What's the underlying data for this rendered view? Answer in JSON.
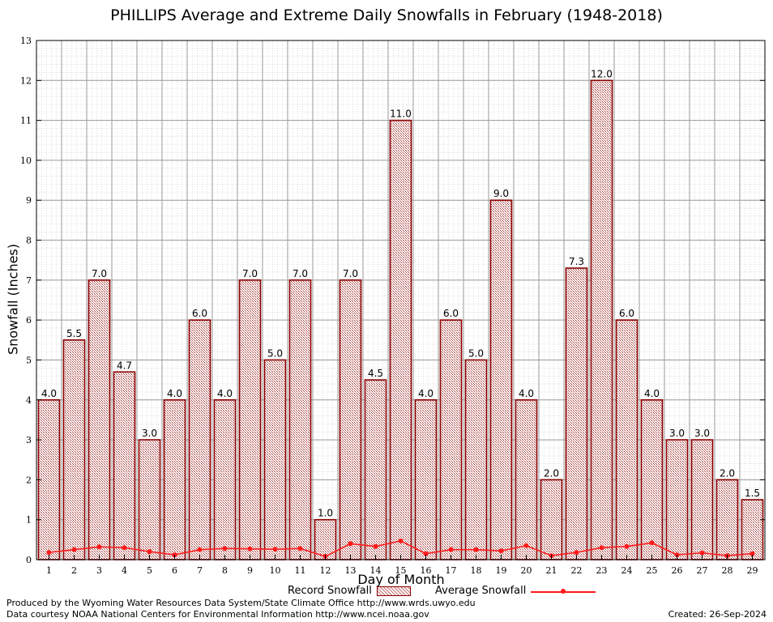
{
  "chart_data": {
    "type": "bar",
    "title": "PHILLIPS Average and Extreme Daily Snowfalls in February (1948-2018)",
    "xlabel": "Day of Month",
    "ylabel": "Snowfall (Inches)",
    "ylim": [
      0,
      13
    ],
    "yticks": [
      "0",
      "1",
      "2",
      "3",
      "4",
      "5",
      "6",
      "7",
      "8",
      "9",
      "10",
      "11",
      "12",
      "13"
    ],
    "categories": [
      "1",
      "2",
      "3",
      "4",
      "5",
      "6",
      "7",
      "8",
      "9",
      "10",
      "11",
      "12",
      "13",
      "14",
      "15",
      "16",
      "17",
      "18",
      "19",
      "20",
      "21",
      "22",
      "23",
      "24",
      "25",
      "26",
      "27",
      "28",
      "29"
    ],
    "series": [
      {
        "name": "Record Snowfall",
        "kind": "bar",
        "values": [
          4.0,
          5.5,
          7.0,
          4.7,
          3.0,
          4.0,
          6.0,
          4.0,
          7.0,
          5.0,
          7.0,
          1.0,
          7.0,
          4.5,
          11.0,
          4.0,
          6.0,
          5.0,
          9.0,
          4.0,
          2.0,
          7.3,
          12.0,
          6.0,
          4.0,
          3.0,
          3.0,
          2.0,
          1.5
        ],
        "labels": [
          "4.0",
          "5.5",
          "7.0",
          "4.7",
          "3.0",
          "4.0",
          "6.0",
          "4.0",
          "7.0",
          "5.0",
          "7.0",
          "1.0",
          "7.0",
          "4.5",
          "11.0",
          "4.0",
          "6.0",
          "5.0",
          "9.0",
          "4.0",
          "2.0",
          "7.3",
          "12.0",
          "6.0",
          "4.0",
          "3.0",
          "3.0",
          "2.0",
          "1.5"
        ],
        "color": "#8b0000",
        "fill": "#c86e6e"
      },
      {
        "name": "Average Snowfall",
        "kind": "line",
        "values": [
          0.18,
          0.25,
          0.32,
          0.3,
          0.2,
          0.12,
          0.25,
          0.28,
          0.27,
          0.26,
          0.28,
          0.08,
          0.4,
          0.33,
          0.47,
          0.15,
          0.25,
          0.25,
          0.22,
          0.35,
          0.1,
          0.18,
          0.3,
          0.33,
          0.42,
          0.12,
          0.17,
          0.1,
          0.15
        ],
        "color": "#ff1a1a"
      }
    ],
    "grid": true,
    "legend_position": "bottom-center"
  },
  "legend": {
    "record_label": "Record Snowfall",
    "average_label": "Average Snowfall"
  },
  "footer": {
    "produced_by": "Produced by the Wyoming Water Resources Data System/State Climate Office http://www.wrds.uwyo.edu",
    "courtesy": "Data courtesy NOAA National Centers for Environmental Information http://www.ncei.noaa.gov",
    "created": "Created: 26-Sep-2024"
  }
}
